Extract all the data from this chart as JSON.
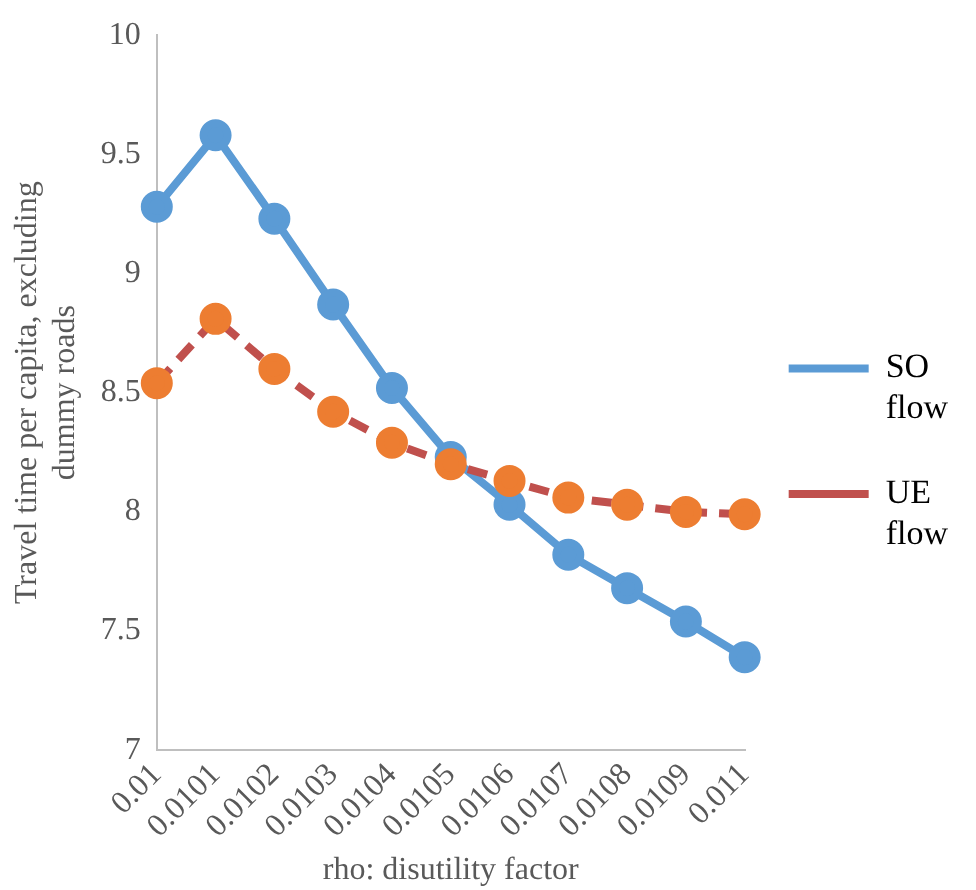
{
  "chart_data": {
    "type": "line",
    "xlabel": "rho: disutility factor",
    "ylabel": "Travel time per capita, excluding dummy roads",
    "categories": [
      "0.01",
      "0.0101",
      "0.0102",
      "0.0103",
      "0.0104",
      "0.0105",
      "0.0106",
      "0.0107",
      "0.0108",
      "0.0109",
      "0.011"
    ],
    "series": [
      {
        "name": "SO flow",
        "color": "#5b9bd5",
        "line_style": "solid",
        "values": [
          9.28,
          9.58,
          9.23,
          8.87,
          8.52,
          8.23,
          8.03,
          7.82,
          7.68,
          7.54,
          7.39
        ]
      },
      {
        "name": "UE flow",
        "color": "#c0504d",
        "colors": [
          "#ed7d31",
          "#ed7d31",
          "#ed7d31",
          "#ed7d31",
          "#ed7d31",
          "#ed7d31",
          "#ed7d31",
          "#ed7d31",
          "#ed7d31",
          "#ed7d31",
          "#ed7d31"
        ],
        "line_style": "dashed",
        "values": [
          8.54,
          8.81,
          8.6,
          8.42,
          8.29,
          8.2,
          8.13,
          8.06,
          8.03,
          8.0,
          7.99
        ]
      }
    ],
    "ylim": [
      7,
      10
    ],
    "yticks": [
      7,
      7.5,
      8,
      8.5,
      9,
      9.5,
      10
    ],
    "grid": false,
    "legend": "right",
    "marker": "circle"
  }
}
